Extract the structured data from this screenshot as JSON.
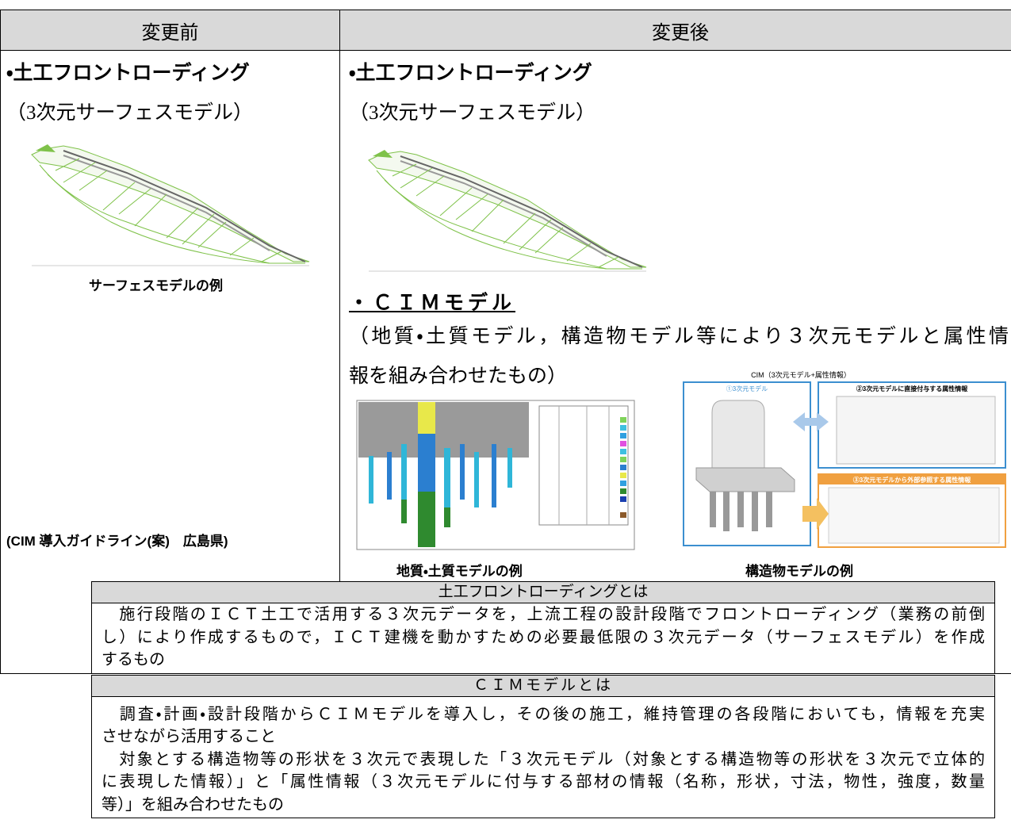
{
  "header": {
    "before": "変更前",
    "after": "変更後"
  },
  "before": {
    "heading": "・土工フロントローディング",
    "subheading": "（3次元サーフェスモデル）",
    "caption": "サーフェスモデルの例",
    "source": "(CIM 導入ガイドライン(案)　広島県)"
  },
  "after": {
    "heading": "・土工フロントローディング",
    "subheading": "（3次元サーフェスモデル）",
    "cim_heading": "・ＣＩＭモデル",
    "cim_description": [
      "（地質・土質モデル，構造物モデル等により３次元モデルと属性情",
      "報を組み合わせたもの）"
    ],
    "geology_caption": "地質・土質モデルの例",
    "structure_caption": "構造物モデルの例",
    "structure_figure": {
      "title": "CIM（3次元モデル+属性情報）",
      "panels": [
        "①3次元モデル",
        "②3次元モデルに直接付与する属性情報",
        "③3次元モデルから外部参照する属性情報"
      ]
    }
  },
  "definitions": [
    {
      "title": "土工フロントローディングとは",
      "lines": [
        "　施行段階のＩＣＴ土工で活用する３次元データを，上流工程の設計段階でフロントローディング（業務の前倒",
        "し）により作成するもので，ＩＣＴ建機を動かすための必要最低限の３次元データ（サーフェスモデル）を作成",
        "するもの"
      ]
    },
    {
      "title": "ＣＩＭモデルとは",
      "lines": [
        "　調査・計画・設計段階からＣＩＭモデルを導入し，その後の施工，維持管理の各段階においても，情報を充実",
        "させながら活用すること",
        "　対象とする構造物等の形状を３次元で表現した「３次元モデル（対象とする構造物等の形状を３次元で立体的",
        "に表現した情報）」と「属性情報（３次元モデルに付与する部材の情報（名称，形状，寸法，物性，強度，数量",
        "等）」を組み合わせたもの"
      ]
    }
  ]
}
